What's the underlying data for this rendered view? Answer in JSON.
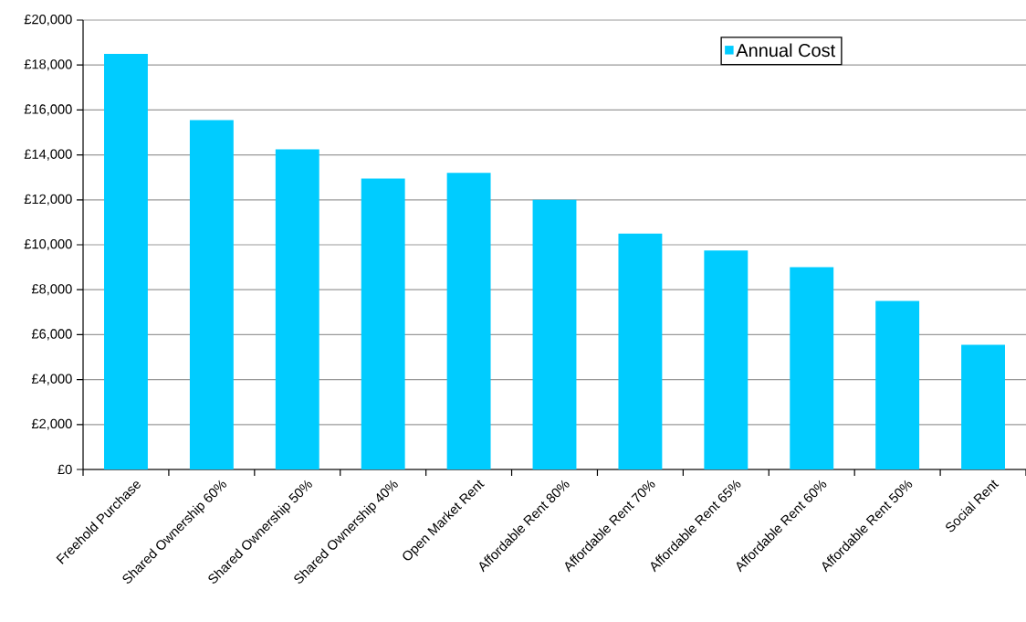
{
  "chart_data": {
    "type": "bar",
    "categories": [
      "Freehold Purchase",
      "Shared Ownership 60%",
      "Shared Ownership 50%",
      "Shared Ownership 40%",
      "Open Market Rent",
      "Affordable Rent 80%",
      "Affordable Rent 70%",
      "Affordable Rent 65%",
      "Affordable Rent 60%",
      "Affordable Rent 50%",
      "Social Rent"
    ],
    "series": [
      {
        "name": "Annual Cost",
        "color": "#00ccff",
        "values": [
          18500,
          15550,
          14250,
          12950,
          13200,
          12000,
          10500,
          9750,
          9000,
          7500,
          5550
        ]
      }
    ],
    "ylim": [
      0,
      20000
    ],
    "yticks": [
      {
        "value": 0,
        "label": "£0"
      },
      {
        "value": 2000,
        "label": "£2,000"
      },
      {
        "value": 4000,
        "label": "£4,000"
      },
      {
        "value": 6000,
        "label": "£6,000"
      },
      {
        "value": 8000,
        "label": "£8,000"
      },
      {
        "value": 10000,
        "label": "£10,000"
      },
      {
        "value": 12000,
        "label": "£12,000"
      },
      {
        "value": 14000,
        "label": "£14,000"
      },
      {
        "value": 16000,
        "label": "£16,000"
      },
      {
        "value": 18000,
        "label": "£18,000"
      },
      {
        "value": 20000,
        "label": "£20,000"
      }
    ],
    "grid": "y",
    "legend": "top right"
  }
}
